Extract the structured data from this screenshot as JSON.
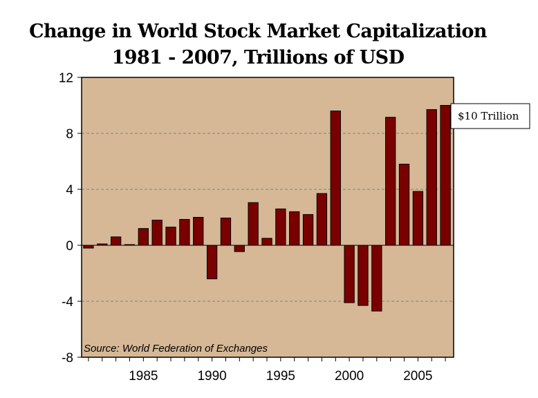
{
  "chart_data": {
    "type": "bar",
    "title": "Change in World Stock Market Capitalization",
    "subtitle": "1981 - 2007, Trillions of USD",
    "xlabel": "",
    "ylabel": "",
    "ylim": [
      -8,
      12
    ],
    "yticks": [
      "12",
      "8",
      "4",
      "0",
      "-4",
      "-8"
    ],
    "ytick_values": [
      12,
      8,
      4,
      0,
      -4,
      -8
    ],
    "xticks": [
      "1985",
      "1990",
      "1995",
      "2000",
      "2005"
    ],
    "xtick_values": [
      1985,
      1990,
      1995,
      2000,
      2005
    ],
    "grid": "dashed horizontal at 8, 4, -4",
    "x": [
      1981,
      1982,
      1983,
      1984,
      1985,
      1986,
      1987,
      1988,
      1989,
      1990,
      1991,
      1992,
      1993,
      1994,
      1995,
      1996,
      1997,
      1998,
      1999,
      2000,
      2001,
      2002,
      2003,
      2004,
      2005,
      2006,
      2007
    ],
    "values": [
      -0.2,
      0.1,
      0.6,
      0.05,
      1.2,
      1.8,
      1.3,
      1.85,
      2.0,
      -2.4,
      1.95,
      -0.45,
      3.05,
      0.5,
      2.6,
      2.4,
      2.2,
      3.7,
      9.6,
      -4.1,
      -4.3,
      -4.7,
      9.15,
      5.8,
      3.85,
      9.7,
      10.0
    ],
    "source": "Source: World Federation of Exchanges",
    "callout": "$10 Trillion",
    "colors": {
      "background": "#d6b896",
      "bar": "#7a0000",
      "bar_edge": "#000000",
      "grid": "#808080"
    }
  }
}
